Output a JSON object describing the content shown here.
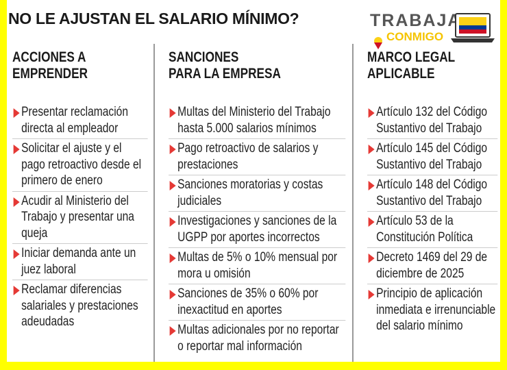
{
  "header": {
    "title": "NO LE AJUSTAN EL SALARIO MÍNIMO?",
    "logo": {
      "line1": "TRABAJA",
      "line2": "CONMIGO"
    }
  },
  "columns": [
    {
      "heading": [
        "ACCIONES A",
        "EMPRENDER"
      ],
      "items": [
        "Presentar reclamación directa al empleador",
        "Solicitar el ajuste y el pago retroactivo desde el primero de enero",
        "Acudir al Ministerio del Trabajo y presentar una queja",
        "Iniciar demanda ante un juez laboral",
        "Reclamar diferencias salariales y prestaciones adeudadas"
      ]
    },
    {
      "heading": [
        "SANCIONES",
        "PARA LA EMPRESA"
      ],
      "items": [
        "Multas del Ministerio del Trabajo hasta 5.000 salarios mínimos",
        "Pago retroactivo de salarios y prestaciones",
        "Sanciones moratorias y costas judiciales",
        "Investigaciones y sanciones de la UGPP por aportes incorrectos",
        "Multas de 5% o 10% mensual por mora u omisión",
        "Sanciones de 35% o 60% por inexactitud en aportes",
        "Multas adicionales por no reportar o reportar mal información"
      ]
    },
    {
      "heading": [
        "MARCO LEGAL",
        "APLICABLE"
      ],
      "items": [
        "Artículo 132 del Código Sustantivo del Trabajo",
        "Artículo 145 del Código Sustantivo del Trabajo",
        "Artículo 148 del Código Sustantivo del Trabajo",
        "Artículo 53 de la Constitución Política",
        "Decreto 1469 del 29 de diciembre de 2025",
        "Principio de aplicación inmediata e irrenunciable del salario mínimo"
      ]
    }
  ]
}
